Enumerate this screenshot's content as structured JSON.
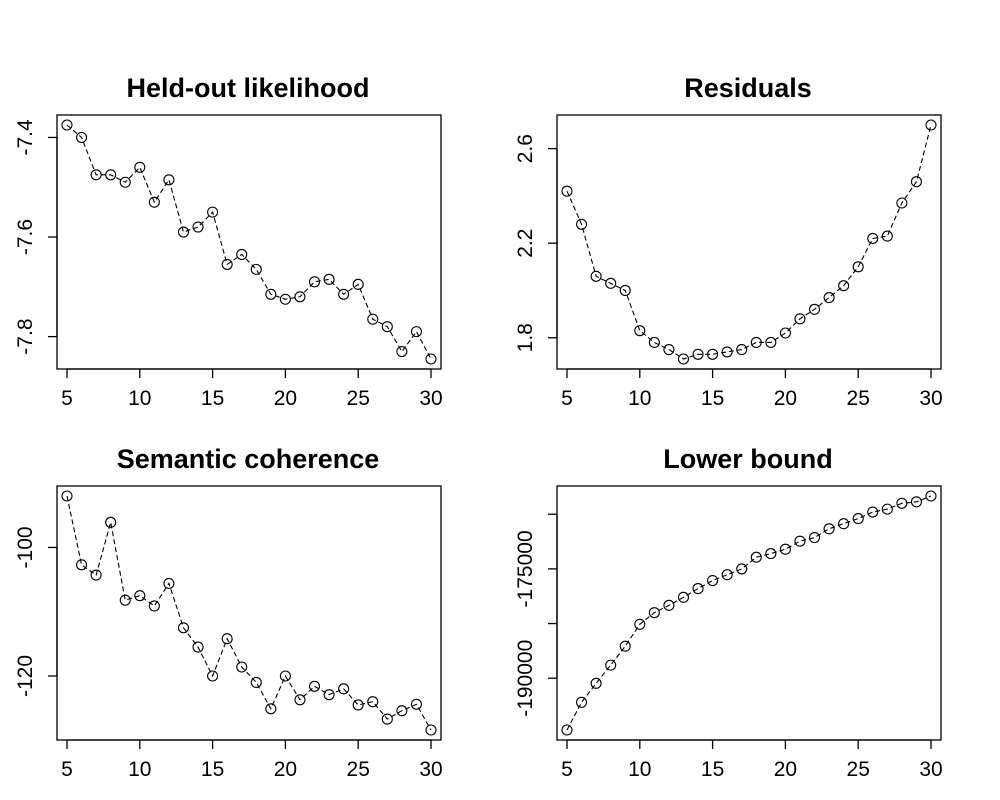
{
  "chart_data": [
    {
      "type": "line",
      "title": "Held-out likelihood",
      "xlabel": "",
      "ylabel": "",
      "x": [
        5,
        6,
        7,
        8,
        9,
        10,
        11,
        12,
        13,
        14,
        15,
        16,
        17,
        18,
        19,
        20,
        21,
        22,
        23,
        24,
        25,
        26,
        27,
        28,
        29,
        30
      ],
      "series": [
        {
          "values": [
            -7.375,
            -7.4,
            -7.475,
            -7.475,
            -7.49,
            -7.46,
            -7.53,
            -7.485,
            -7.59,
            -7.58,
            -7.55,
            -7.655,
            -7.635,
            -7.665,
            -7.715,
            -7.725,
            -7.72,
            -7.69,
            -7.685,
            -7.715,
            -7.695,
            -7.765,
            -7.78,
            -7.83,
            -7.79,
            -7.845
          ]
        }
      ],
      "xlim": [
        5,
        30
      ],
      "ylim": [
        -7.845,
        -7.375
      ],
      "xticks": [
        5,
        10,
        15,
        20,
        25,
        30
      ],
      "xtick_labels": [
        "5",
        "10",
        "15",
        "20",
        "25",
        "30"
      ],
      "yticks": [
        -7.4,
        -7.6,
        -7.8
      ],
      "ytick_labels": [
        "-7.4",
        "-7.6",
        "-7.8"
      ],
      "marker": "open-circle",
      "line_style": "dashed",
      "color": "#000000",
      "grid": false
    },
    {
      "type": "line",
      "title": "Residuals",
      "xlabel": "",
      "ylabel": "",
      "x": [
        5,
        6,
        7,
        8,
        9,
        10,
        11,
        12,
        13,
        14,
        15,
        16,
        17,
        18,
        19,
        20,
        21,
        22,
        23,
        24,
        25,
        26,
        27,
        28,
        29,
        30
      ],
      "series": [
        {
          "values": [
            2.42,
            2.28,
            2.06,
            2.03,
            2.0,
            1.83,
            1.78,
            1.75,
            1.71,
            1.73,
            1.73,
            1.74,
            1.75,
            1.78,
            1.78,
            1.82,
            1.88,
            1.92,
            1.97,
            2.02,
            2.1,
            2.22,
            2.23,
            2.37,
            2.46,
            2.7
          ]
        }
      ],
      "xlim": [
        5,
        30
      ],
      "ylim": [
        1.71,
        2.7
      ],
      "xticks": [
        5,
        10,
        15,
        20,
        25,
        30
      ],
      "xtick_labels": [
        "5",
        "10",
        "15",
        "20",
        "25",
        "30"
      ],
      "yticks": [
        1.8,
        2.2,
        2.6
      ],
      "ytick_labels": [
        "1.8",
        "2.2",
        "2.6"
      ],
      "marker": "open-circle",
      "line_style": "dashed",
      "color": "#000000",
      "grid": false
    },
    {
      "type": "line",
      "title": "Semantic coherence",
      "xlabel": "",
      "ylabel": "",
      "x": [
        5,
        6,
        7,
        8,
        9,
        10,
        11,
        12,
        13,
        14,
        15,
        16,
        17,
        18,
        19,
        20,
        21,
        22,
        23,
        24,
        25,
        26,
        27,
        28,
        29,
        30
      ],
      "series": [
        {
          "values": [
            -92.0,
            -102.7,
            -104.3,
            -96.1,
            -108.2,
            -107.5,
            -109.1,
            -105.6,
            -112.5,
            -115.5,
            -120.0,
            -114.2,
            -118.6,
            -121.0,
            -125.1,
            -120.0,
            -123.7,
            -121.6,
            -122.9,
            -122.0,
            -124.5,
            -124.0,
            -126.7,
            -125.4,
            -124.4,
            -128.4
          ]
        }
      ],
      "xlim": [
        5,
        30
      ],
      "ylim": [
        -128.4,
        -92.0
      ],
      "xticks": [
        5,
        10,
        15,
        20,
        25,
        30
      ],
      "xtick_labels": [
        "5",
        "10",
        "15",
        "20",
        "25",
        "30"
      ],
      "yticks": [
        -100,
        -120
      ],
      "ytick_labels": [
        "-100",
        "-120"
      ],
      "marker": "open-circle",
      "line_style": "dashed",
      "color": "#000000",
      "grid": false
    },
    {
      "type": "line",
      "title": "Lower bound",
      "xlabel": "",
      "ylabel": "",
      "x": [
        5,
        6,
        7,
        8,
        9,
        10,
        11,
        12,
        13,
        14,
        15,
        16,
        17,
        18,
        19,
        20,
        21,
        22,
        23,
        24,
        25,
        26,
        27,
        28,
        29,
        30
      ],
      "series": [
        {
          "values": [
            -197100,
            -193300,
            -190700,
            -188200,
            -185600,
            -182600,
            -181000,
            -180000,
            -178900,
            -177700,
            -176600,
            -175800,
            -175000,
            -173400,
            -172900,
            -172300,
            -171200,
            -170700,
            -169500,
            -168800,
            -168100,
            -167200,
            -166800,
            -166000,
            -165800,
            -165000
          ]
        }
      ],
      "xlim": [
        5,
        30
      ],
      "ylim": [
        -197100,
        -165000
      ],
      "xticks": [
        5,
        10,
        15,
        20,
        25,
        30
      ],
      "xtick_labels": [
        "5",
        "10",
        "15",
        "20",
        "25",
        "30"
      ],
      "yticks": [
        -190000,
        -182500,
        -175000,
        -167500
      ],
      "ytick_labels": [
        "-190000",
        "",
        "-175000",
        ""
      ],
      "marker": "open-circle",
      "line_style": "dashed",
      "color": "#000000",
      "grid": false
    }
  ]
}
